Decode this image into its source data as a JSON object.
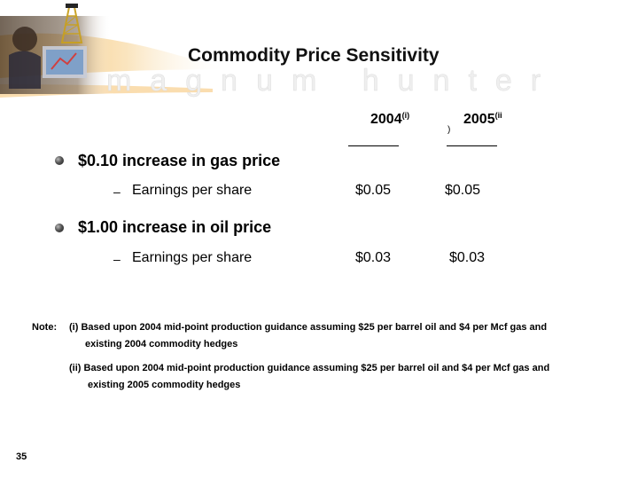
{
  "slide": {
    "title": "Commodity Price Sensitivity",
    "watermark_icon": "oil-derrick-logo",
    "header_photo_icon": "person-at-computer-photo",
    "brand_watermark": "magnum hunter",
    "page_number": "35"
  },
  "columns": [
    {
      "year": "2004",
      "footnote": "(i)"
    },
    {
      "year": "2005",
      "footnote": "(ii"
    }
  ],
  "stray_paren": ")",
  "items": [
    {
      "heading": "$0.10 increase in gas price",
      "dash": "–",
      "metric": "Earnings per share",
      "values": [
        "$0.05",
        "$0.05"
      ]
    },
    {
      "heading": "$1.00 increase in oil price",
      "dash": "–",
      "metric": "Earnings per share",
      "values": [
        "$0.03",
        "$0.03"
      ]
    }
  ],
  "notes": {
    "label": "Note:",
    "entries": [
      {
        "line1": "(i) Based upon 2004 mid-point production guidance assuming $25 per barrel oil and $4 per Mcf gas and",
        "line2": "existing 2004 commodity hedges"
      },
      {
        "line1": "(ii) Based upon 2004 mid-point production guidance assuming $25 per barrel oil and $4 per Mcf gas and",
        "line2": "existing 2005 commodity hedges"
      }
    ]
  },
  "colors": {
    "header_orange": "#f2b24a",
    "watermark_text": "#eeeeee",
    "derrick": "#c8a020"
  }
}
